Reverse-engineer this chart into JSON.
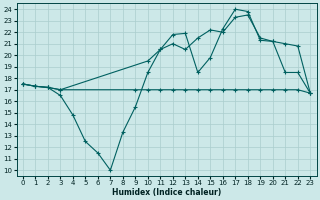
{
  "xlabel": "Humidex (Indice chaleur)",
  "xlim": [
    -0.5,
    23.5
  ],
  "ylim": [
    9.5,
    24.5
  ],
  "yticks": [
    10,
    11,
    12,
    13,
    14,
    15,
    16,
    17,
    18,
    19,
    20,
    21,
    22,
    23,
    24
  ],
  "xticks": [
    0,
    1,
    2,
    3,
    4,
    5,
    6,
    7,
    8,
    9,
    10,
    11,
    12,
    13,
    14,
    15,
    16,
    17,
    18,
    19,
    20,
    21,
    22,
    23
  ],
  "background_color": "#cce8e8",
  "grid_color": "#aacece",
  "line_color": "#006060",
  "line1_x": [
    0,
    1,
    2,
    3,
    9,
    10,
    11,
    12,
    13,
    14,
    15,
    16,
    17,
    18,
    19,
    20,
    21,
    22,
    23
  ],
  "line1_y": [
    17.5,
    17.3,
    17.2,
    17.0,
    17.0,
    17.0,
    17.0,
    17.0,
    17.0,
    17.0,
    17.0,
    17.0,
    17.0,
    17.0,
    17.0,
    17.0,
    17.0,
    17.0,
    16.7
  ],
  "line2_x": [
    0,
    1,
    2,
    3,
    4,
    5,
    6,
    7,
    8,
    9,
    10,
    11,
    12,
    13,
    14,
    15,
    16,
    17,
    18,
    19,
    20,
    21,
    22,
    23
  ],
  "line2_y": [
    17.5,
    17.3,
    17.2,
    16.5,
    14.8,
    12.5,
    11.5,
    10.0,
    13.3,
    15.5,
    18.5,
    20.5,
    21.8,
    21.9,
    18.5,
    19.8,
    22.3,
    24.0,
    23.8,
    21.3,
    21.2,
    18.5,
    18.5,
    16.7
  ],
  "line3_x": [
    0,
    1,
    2,
    3,
    10,
    11,
    12,
    13,
    14,
    15,
    16,
    17,
    18,
    19,
    20,
    21,
    22,
    23
  ],
  "line3_y": [
    17.5,
    17.3,
    17.2,
    17.0,
    19.5,
    20.5,
    21.0,
    20.5,
    21.5,
    22.2,
    22.0,
    23.3,
    23.5,
    21.5,
    21.2,
    21.0,
    20.8,
    16.7
  ]
}
